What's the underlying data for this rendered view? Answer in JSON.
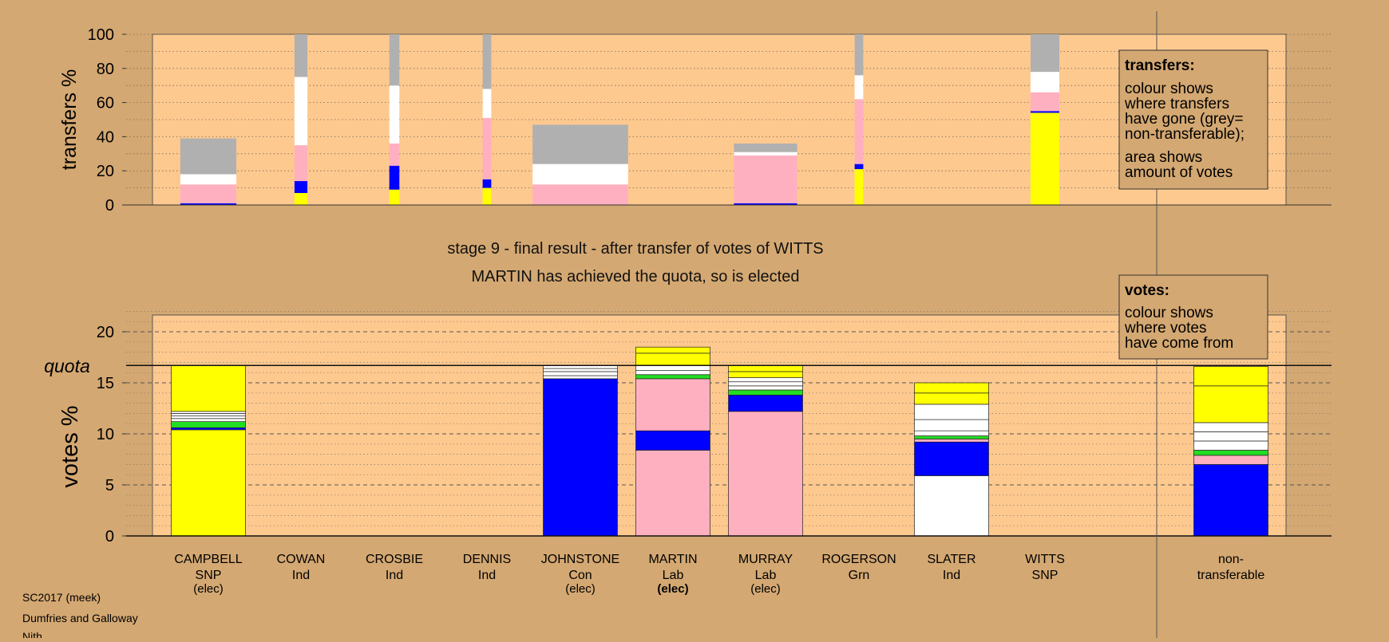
{
  "title": "stage 9 - final result - after transfer of votes of WITTS",
  "subtitle": "MARTIN has achieved the quota, so is elected",
  "footer": [
    "SC2017 (meek)",
    "Dumfries and Galloway",
    "Nith"
  ],
  "colors": {
    "background": "#d4a872",
    "panel": "#fec98f",
    "SNP": "#ffff00",
    "Con": "#0000ff",
    "Lab": "#ffb0c0",
    "Grn": "#22dd22",
    "Ind": "#ffffff",
    "non_transferable": "#b0b0b0"
  },
  "legend_transfers": {
    "heading": "transfers:",
    "lines": [
      "colour shows",
      "where transfers",
      "have gone (grey=",
      "non-transferable);",
      "area shows",
      "amount of votes"
    ]
  },
  "legend_votes": {
    "heading": "votes:",
    "lines": [
      "colour shows",
      "where votes",
      "have come from"
    ]
  },
  "chart_data": [
    {
      "type": "bar",
      "name": "transfers",
      "ylabel": "transfers %",
      "ylim": [
        0,
        100
      ],
      "yticks": [
        0,
        20,
        40,
        60,
        80,
        100
      ],
      "bars": [
        {
          "candidate": "CAMPBELL",
          "width_share": 0.78,
          "segments": [
            {
              "party": "Con",
              "from": 0,
              "to": 1
            },
            {
              "party": "Lab",
              "from": 1,
              "to": 12
            },
            {
              "party": "Ind",
              "from": 12,
              "to": 18
            },
            {
              "party": "non_transferable",
              "from": 18,
              "to": 39
            }
          ]
        },
        {
          "candidate": "COWAN",
          "width_share": 0.18,
          "segments": [
            {
              "party": "SNP",
              "from": 0,
              "to": 7
            },
            {
              "party": "Con",
              "from": 7,
              "to": 14
            },
            {
              "party": "Lab",
              "from": 14,
              "to": 35
            },
            {
              "party": "Ind",
              "from": 35,
              "to": 75
            },
            {
              "party": "non_transferable",
              "from": 75,
              "to": 100
            }
          ]
        },
        {
          "candidate": "CROSBIE",
          "width_share": 0.14,
          "segments": [
            {
              "party": "SNP",
              "from": 0,
              "to": 9
            },
            {
              "party": "Con",
              "from": 9,
              "to": 23
            },
            {
              "party": "Lab",
              "from": 23,
              "to": 36
            },
            {
              "party": "Ind",
              "from": 36,
              "to": 70
            },
            {
              "party": "non_transferable",
              "from": 70,
              "to": 100
            }
          ]
        },
        {
          "candidate": "DENNIS",
          "width_share": 0.12,
          "segments": [
            {
              "party": "SNP",
              "from": 0,
              "to": 10
            },
            {
              "party": "Con",
              "from": 10,
              "to": 15
            },
            {
              "party": "Lab",
              "from": 15,
              "to": 51
            },
            {
              "party": "Ind",
              "from": 51,
              "to": 68
            },
            {
              "party": "non_transferable",
              "from": 68,
              "to": 100
            }
          ]
        },
        {
          "candidate": "JOHNSTONE",
          "width_share": 1.33,
          "segments": [
            {
              "party": "Lab",
              "from": 0,
              "to": 12
            },
            {
              "party": "Ind",
              "from": 12,
              "to": 24
            },
            {
              "party": "non_transferable",
              "from": 24,
              "to": 47
            }
          ]
        },
        {
          "candidate": "MARTIN",
          "width_share": 0,
          "segments": []
        },
        {
          "candidate": "MURRAY",
          "width_share": 0.88,
          "segments": [
            {
              "party": "Con",
              "from": 0,
              "to": 1
            },
            {
              "party": "Lab",
              "from": 1,
              "to": 29
            },
            {
              "party": "Ind",
              "from": 29,
              "to": 31
            },
            {
              "party": "non_transferable",
              "from": 31,
              "to": 36
            }
          ]
        },
        {
          "candidate": "ROGERSON",
          "width_share": 0.12,
          "segments": [
            {
              "party": "SNP",
              "from": 0,
              "to": 21
            },
            {
              "party": "Con",
              "from": 21,
              "to": 24
            },
            {
              "party": "Lab",
              "from": 24,
              "to": 62
            },
            {
              "party": "Ind",
              "from": 62,
              "to": 76
            },
            {
              "party": "non_transferable",
              "from": 76,
              "to": 100
            }
          ]
        },
        {
          "candidate": "SLATER",
          "width_share": 0,
          "segments": []
        },
        {
          "candidate": "WITTS",
          "width_share": 0.4,
          "segments": [
            {
              "party": "SNP",
              "from": 0,
              "to": 54
            },
            {
              "party": "Con",
              "from": 54,
              "to": 55
            },
            {
              "party": "Lab",
              "from": 55,
              "to": 66
            },
            {
              "party": "Ind",
              "from": 66,
              "to": 78
            },
            {
              "party": "non_transferable",
              "from": 78,
              "to": 100
            }
          ]
        }
      ]
    },
    {
      "type": "bar",
      "name": "votes",
      "ylabel": "votes %",
      "ylim": [
        0,
        22
      ],
      "yticks": [
        0,
        5,
        10,
        15,
        20
      ],
      "quota": 16.7,
      "quota_label": "quota",
      "candidates": [
        {
          "name": "CAMPBELL",
          "party": "SNP",
          "status": "(elec)",
          "segments": [
            {
              "party": "SNP",
              "from": 0,
              "to": 10.4
            },
            {
              "party": "Con",
              "from": 10.4,
              "to": 10.6
            },
            {
              "party": "Grn",
              "from": 10.6,
              "to": 11.2
            },
            {
              "party": "Ind",
              "from": 11.2,
              "to": 11.5
            },
            {
              "party": "Ind",
              "from": 11.5,
              "to": 11.75
            },
            {
              "party": "Ind",
              "from": 11.75,
              "to": 12.0
            },
            {
              "party": "Ind",
              "from": 12.0,
              "to": 12.2
            },
            {
              "party": "SNP",
              "from": 12.2,
              "to": 16.7
            }
          ]
        },
        {
          "name": "COWAN",
          "party": "Ind",
          "status": "",
          "segments": []
        },
        {
          "name": "CROSBIE",
          "party": "Ind",
          "status": "",
          "segments": []
        },
        {
          "name": "DENNIS",
          "party": "Ind",
          "status": "",
          "segments": []
        },
        {
          "name": "JOHNSTONE",
          "party": "Con",
          "status": "(elec)",
          "segments": [
            {
              "party": "Con",
              "from": 0,
              "to": 15.4
            },
            {
              "party": "Ind",
              "from": 15.4,
              "to": 15.7
            },
            {
              "party": "Ind",
              "from": 15.7,
              "to": 16.1
            },
            {
              "party": "Ind",
              "from": 16.1,
              "to": 16.4
            },
            {
              "party": "Ind",
              "from": 16.4,
              "to": 16.7
            }
          ]
        },
        {
          "name": "MARTIN",
          "party": "Lab",
          "status": "(elec)",
          "segments": [
            {
              "party": "Lab",
              "from": 0,
              "to": 8.4
            },
            {
              "party": "Con",
              "from": 8.4,
              "to": 10.3
            },
            {
              "party": "Lab",
              "from": 10.3,
              "to": 15.4
            },
            {
              "party": "Grn",
              "from": 15.4,
              "to": 15.8
            },
            {
              "party": "Ind",
              "from": 15.8,
              "to": 16.2
            },
            {
              "party": "Ind",
              "from": 16.2,
              "to": 16.7
            },
            {
              "party": "SNP",
              "from": 16.7,
              "to": 17.9
            },
            {
              "party": "SNP",
              "from": 17.9,
              "to": 18.5
            }
          ]
        },
        {
          "name": "MURRAY",
          "party": "Lab",
          "status": "(elec)",
          "segments": [
            {
              "party": "Lab",
              "from": 0,
              "to": 12.2
            },
            {
              "party": "Con",
              "from": 12.2,
              "to": 13.8
            },
            {
              "party": "Grn",
              "from": 13.8,
              "to": 14.3
            },
            {
              "party": "Ind",
              "from": 14.3,
              "to": 14.7
            },
            {
              "party": "Ind",
              "from": 14.7,
              "to": 15.1
            },
            {
              "party": "Ind",
              "from": 15.1,
              "to": 15.5
            },
            {
              "party": "SNP",
              "from": 15.5,
              "to": 16.1
            },
            {
              "party": "SNP",
              "from": 16.1,
              "to": 16.7
            }
          ]
        },
        {
          "name": "ROGERSON",
          "party": "Grn",
          "status": "",
          "segments": []
        },
        {
          "name": "SLATER",
          "party": "Ind",
          "status": "",
          "segments": [
            {
              "party": "Ind",
              "from": 0,
              "to": 5.9
            },
            {
              "party": "Con",
              "from": 5.9,
              "to": 9.2
            },
            {
              "party": "Lab",
              "from": 9.2,
              "to": 9.5
            },
            {
              "party": "Grn",
              "from": 9.5,
              "to": 9.8
            },
            {
              "party": "Ind",
              "from": 9.8,
              "to": 10.3
            },
            {
              "party": "Ind",
              "from": 10.3,
              "to": 11.4
            },
            {
              "party": "Ind",
              "from": 11.4,
              "to": 12.9
            },
            {
              "party": "SNP",
              "from": 12.9,
              "to": 14.0
            },
            {
              "party": "SNP",
              "from": 14.0,
              "to": 15.0
            }
          ]
        },
        {
          "name": "WITTS",
          "party": "SNP",
          "status": "",
          "segments": []
        }
      ],
      "non_transferable": {
        "label_lines": [
          "non-",
          "transferable"
        ],
        "segments": [
          {
            "party": "Con",
            "from": 0,
            "to": 7.0
          },
          {
            "party": "Lab",
            "from": 7.0,
            "to": 7.9
          },
          {
            "party": "Grn",
            "from": 7.9,
            "to": 8.4
          },
          {
            "party": "Ind",
            "from": 8.4,
            "to": 9.3
          },
          {
            "party": "Ind",
            "from": 9.3,
            "to": 10.2
          },
          {
            "party": "Ind",
            "from": 10.2,
            "to": 11.1
          },
          {
            "party": "SNP",
            "from": 11.1,
            "to": 14.7
          },
          {
            "party": "SNP",
            "from": 14.7,
            "to": 16.6
          }
        ]
      }
    }
  ]
}
